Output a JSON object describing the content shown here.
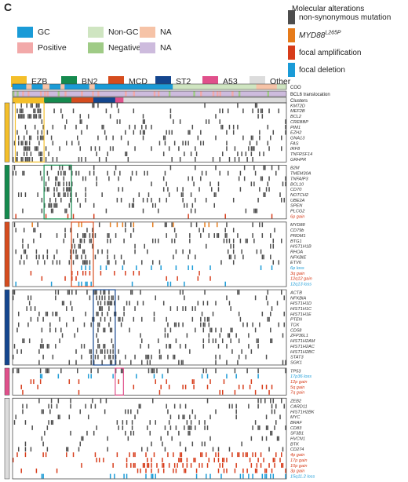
{
  "panel_label": "C",
  "legend": {
    "groups": [
      {
        "label": "GC",
        "color": "#1a9bd7"
      },
      {
        "label": "Non-GC",
        "color": "#cfe5c1"
      },
      {
        "label": "NA",
        "color": "#f6c3a7"
      },
      {
        "label": "Positive",
        "color": "#f2a9a9"
      },
      {
        "label": "Negative",
        "color": "#9fcb86"
      },
      {
        "label": "NA",
        "color": "#cdbbdd"
      },
      {
        "label": "EZB",
        "color": "#f4bf2a"
      },
      {
        "label": "BN2",
        "color": "#158a4e"
      },
      {
        "label": "MCD",
        "color": "#d54c1e"
      },
      {
        "label": "ST2",
        "color": "#14468e"
      },
      {
        "label": "A53",
        "color": "#e0508b"
      },
      {
        "label": "Other",
        "color": "#dcdcdc"
      }
    ]
  },
  "molecular_legend": {
    "title": "Molecular alterations",
    "items": [
      {
        "label": "non-synonymous mutation",
        "color": "#4d4d4d"
      },
      {
        "label": "MYD88",
        "sup": "L265P",
        "color": "#e67b1a"
      },
      {
        "label": "focal amplification",
        "color": "#d73c1a"
      },
      {
        "label": "focal deletion",
        "color": "#1a9bd7"
      }
    ]
  },
  "annotation_track_labels": [
    "COO",
    "BCL6 translocation",
    "Clusters"
  ],
  "chart_data": {
    "type": "heatmap",
    "title": "",
    "row_groups": [
      {
        "cluster": "EZB",
        "color": "#f4bf2a",
        "rows": [
          {
            "gene": "KMT2D",
            "color": "#333333"
          },
          {
            "gene": "MEF2B",
            "color": "#333333"
          },
          {
            "gene": "BCL2",
            "color": "#333333"
          },
          {
            "gene": "CREBBP",
            "color": "#333333"
          },
          {
            "gene": "PIM1",
            "color": "#333333"
          },
          {
            "gene": "EZH2",
            "color": "#333333"
          },
          {
            "gene": "GNA13",
            "color": "#333333"
          },
          {
            "gene": "FAS",
            "color": "#333333"
          },
          {
            "gene": "IRF8",
            "color": "#333333"
          },
          {
            "gene": "TNFRSF14",
            "color": "#333333"
          },
          {
            "gene": "GRHPR",
            "color": "#333333"
          }
        ]
      },
      {
        "cluster": "BN2",
        "color": "#158a4e",
        "rows": [
          {
            "gene": "B2M",
            "color": "#333333"
          },
          {
            "gene": "TMEM30A",
            "color": "#333333"
          },
          {
            "gene": "TNFAIP3",
            "color": "#333333"
          },
          {
            "gene": "BCL10",
            "color": "#333333"
          },
          {
            "gene": "CD70",
            "color": "#333333"
          },
          {
            "gene": "NOTCH2",
            "color": "#333333"
          },
          {
            "gene": "UBE2A",
            "color": "#333333"
          },
          {
            "gene": "SPEN",
            "color": "#333333"
          },
          {
            "gene": "PLCG2",
            "color": "#333333"
          },
          {
            "gene": "6p gain",
            "color": "#d73c1a"
          }
        ]
      },
      {
        "cluster": "MCD",
        "color": "#d54c1e",
        "rows": [
          {
            "gene": "MYD88",
            "color": "#333333"
          },
          {
            "gene": "CD79b",
            "color": "#333333"
          },
          {
            "gene": "PRDM1",
            "color": "#333333"
          },
          {
            "gene": "BTG1",
            "color": "#333333"
          },
          {
            "gene": "HIST1H1B",
            "color": "#333333"
          },
          {
            "gene": "RHOA",
            "color": "#333333"
          },
          {
            "gene": "NFKBIE",
            "color": "#333333"
          },
          {
            "gene": "ETV6",
            "color": "#333333"
          },
          {
            "gene": "6p loss",
            "color": "#1a9bd7"
          },
          {
            "gene": "3q gain",
            "color": "#d73c1a"
          },
          {
            "gene": "12q12 gain",
            "color": "#d73c1a"
          },
          {
            "gene": "12q13 loss",
            "color": "#1a9bd7"
          }
        ]
      },
      {
        "cluster": "ST2",
        "color": "#14468e",
        "rows": [
          {
            "gene": "ACTB",
            "color": "#333333"
          },
          {
            "gene": "NFKBIA",
            "color": "#333333"
          },
          {
            "gene": "HIST1H1D",
            "color": "#333333"
          },
          {
            "gene": "HIST1H1C",
            "color": "#333333"
          },
          {
            "gene": "HIST1H1E",
            "color": "#333333"
          },
          {
            "gene": "PTEN",
            "color": "#333333"
          },
          {
            "gene": "TOX",
            "color": "#333333"
          },
          {
            "gene": "CD58",
            "color": "#333333"
          },
          {
            "gene": "ZFP36L1",
            "color": "#333333"
          },
          {
            "gene": "HIST1H2AM",
            "color": "#333333"
          },
          {
            "gene": "HIST1H2AC",
            "color": "#333333"
          },
          {
            "gene": "HIST1H2BC",
            "color": "#333333"
          },
          {
            "gene": "STAT3",
            "color": "#333333"
          },
          {
            "gene": "SGK1",
            "color": "#333333"
          }
        ]
      },
      {
        "cluster": "A53",
        "color": "#e0508b",
        "rows": [
          {
            "gene": "TP53",
            "color": "#333333"
          },
          {
            "gene": "17p36 loss",
            "color": "#1a9bd7"
          },
          {
            "gene": "12p gain",
            "color": "#d73c1a"
          },
          {
            "gene": "5q gain",
            "color": "#d73c1a"
          },
          {
            "gene": "7q gain",
            "color": "#d73c1a"
          }
        ]
      },
      {
        "cluster": "Other",
        "color": "#dcdcdc",
        "rows": [
          {
            "gene": "ZEB2",
            "color": "#333333"
          },
          {
            "gene": "CARD11",
            "color": "#333333"
          },
          {
            "gene": "HIST1H2BK",
            "color": "#333333"
          },
          {
            "gene": "MYC",
            "color": "#333333"
          },
          {
            "gene": "BRAF",
            "color": "#333333"
          },
          {
            "gene": "CD83",
            "color": "#333333"
          },
          {
            "gene": "SF3B1",
            "color": "#333333"
          },
          {
            "gene": "HVCN1",
            "color": "#333333"
          },
          {
            "gene": "BTK",
            "color": "#333333"
          },
          {
            "gene": "CD274",
            "color": "#333333"
          },
          {
            "gene": "4p gain",
            "color": "#d73c1a"
          },
          {
            "gene": "17p gain",
            "color": "#d73c1a"
          },
          {
            "gene": "10p gain",
            "color": "#d73c1a"
          },
          {
            "gene": "3p gain",
            "color": "#d73c1a"
          },
          {
            "gene": "15q11.2 loss",
            "color": "#1a9bd7"
          }
        ]
      }
    ],
    "columns": 200,
    "clusters_track": [
      {
        "cluster": "EZB",
        "from": 0,
        "to": 23
      },
      {
        "cluster": "BN2",
        "from": 23,
        "to": 43
      },
      {
        "cluster": "MCD",
        "from": 43,
        "to": 59
      },
      {
        "cluster": "ST2",
        "from": 59,
        "to": 75
      },
      {
        "cluster": "A53",
        "from": 75,
        "to": 81
      },
      {
        "cluster": "Other",
        "from": 81,
        "to": 200
      }
    ],
    "coo_track": [
      {
        "value": "GC",
        "from": 0,
        "to": 10
      },
      {
        "value": "NA",
        "from": 10,
        "to": 14
      },
      {
        "value": "GC",
        "from": 14,
        "to": 22
      },
      {
        "value": "NA",
        "from": 22,
        "to": 27
      },
      {
        "value": "GC",
        "from": 27,
        "to": 35
      },
      {
        "value": "NA",
        "from": 35,
        "to": 38
      },
      {
        "value": "GC",
        "from": 38,
        "to": 56
      },
      {
        "value": "NA",
        "from": 56,
        "to": 60
      },
      {
        "value": "GC",
        "from": 60,
        "to": 117
      },
      {
        "value": "Non-GC",
        "from": 117,
        "to": 178
      },
      {
        "value": "NA",
        "from": 178,
        "to": 193
      },
      {
        "value": "Non-GC",
        "from": 193,
        "to": 200
      }
    ],
    "bcl6_track_positive": [
      0,
      3,
      7,
      11,
      20,
      23,
      25,
      33,
      38,
      50,
      58,
      62,
      82,
      88,
      103,
      106,
      114,
      132,
      137,
      146,
      149,
      151,
      160,
      165,
      186
    ],
    "group_box_columns": [
      [
        2,
        23
      ],
      [
        23,
        43
      ],
      [
        43,
        59
      ],
      [
        59,
        75
      ],
      [
        75,
        81
      ],
      [
        81,
        200
      ]
    ],
    "annotation_track_note": "COO and BCL6 translocation colors map to legend groups",
    "density": [
      0.36,
      0.3,
      0.24,
      0.3,
      0.28,
      0.09
    ],
    "off_density": 0.09,
    "cna_density": [
      0.05,
      0.1
    ]
  }
}
